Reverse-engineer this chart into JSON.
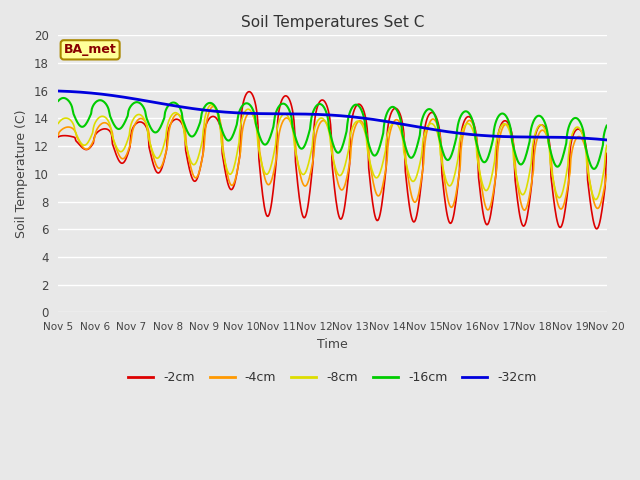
{
  "title": "Soil Temperatures Set C",
  "xlabel": "Time",
  "ylabel": "Soil Temperature (C)",
  "ylim": [
    0,
    20
  ],
  "fig_bg": "#e8e8e8",
  "plot_bg": "#e8e8e8",
  "grid_color": "#ffffff",
  "colors": {
    "-2cm": "#dd0000",
    "-4cm": "#ff9900",
    "-8cm": "#dddd00",
    "-16cm": "#00cc00",
    "-32cm": "#0000dd"
  },
  "annotation_text": "BA_met",
  "annotation_bg": "#ffff99",
  "annotation_border": "#aa8800",
  "x_tick_labels": [
    "Nov 5",
    "Nov 6",
    "Nov 7",
    "Nov 8",
    "Nov 9",
    "Nov 10",
    "Nov 11",
    "Nov 12",
    "Nov 13",
    "Nov 14",
    "Nov 15",
    "Nov 16",
    "Nov 17",
    "Nov 18",
    "Nov 19",
    "Nov 20"
  ],
  "n_points": 720,
  "days": 15
}
